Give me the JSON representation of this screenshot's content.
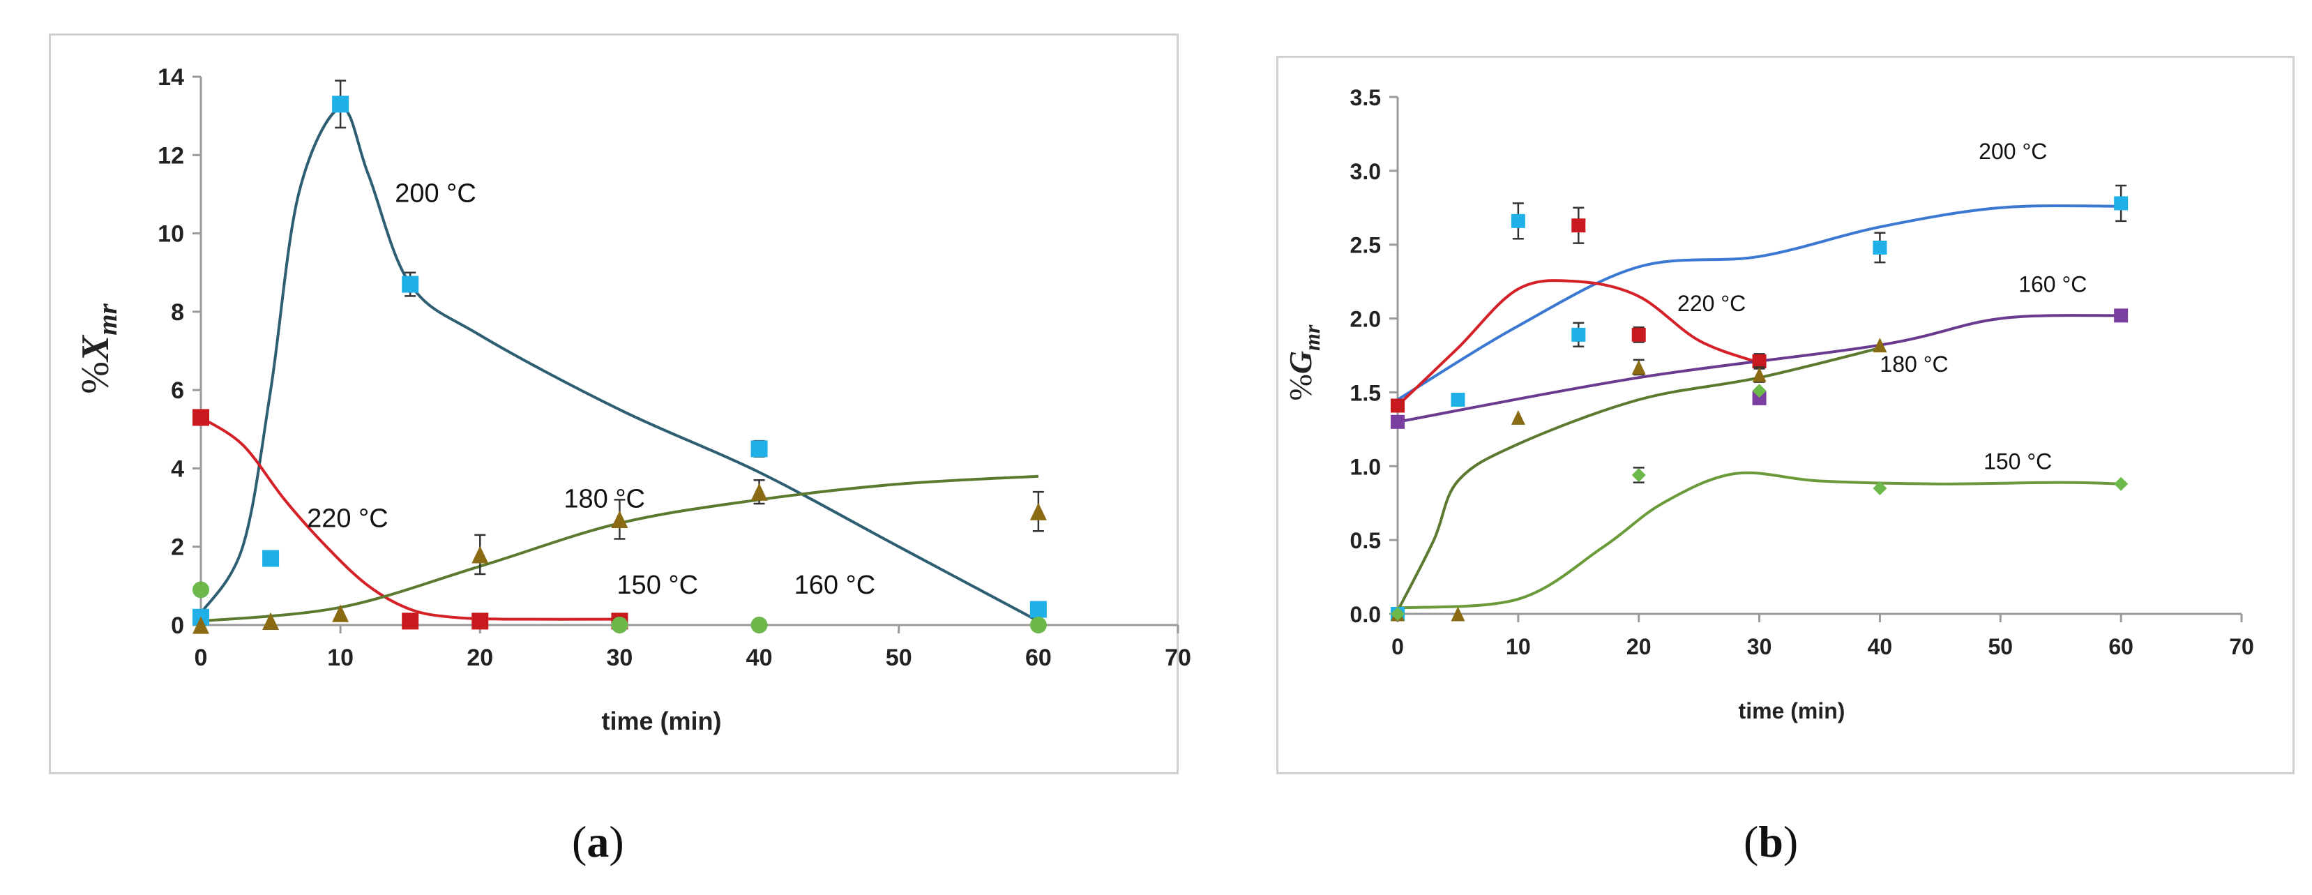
{
  "panels": [
    {
      "id": "a",
      "caption": "a",
      "chart_data": {
        "type": "scatter",
        "xlabel": "time (min)",
        "ylabel_prefix": "%",
        "ylabel_var": "X",
        "ylabel_sub": "mr",
        "xlim": [
          0,
          70
        ],
        "ylim": [
          0,
          14
        ],
        "xticks": [
          0,
          10,
          20,
          30,
          40,
          50,
          60,
          70
        ],
        "yticks": [
          0,
          2,
          4,
          6,
          8,
          10,
          12,
          14
        ],
        "series": [
          {
            "name": "200 °C",
            "color": "#1fb0e8",
            "marker": "square",
            "x": [
              0,
              5,
              10,
              15,
              40,
              60
            ],
            "y": [
              0.2,
              1.7,
              13.3,
              8.7,
              4.5,
              0.4
            ],
            "err": [
              0,
              0,
              0.6,
              0.3,
              0.2,
              0
            ],
            "curve_color": "#2e5e72",
            "curve": [
              [
                0,
                0.3
              ],
              [
                3,
                2
              ],
              [
                5,
                6
              ],
              [
                7,
                11
              ],
              [
                10,
                13.2
              ],
              [
                12,
                11.5
              ],
              [
                15,
                8.7
              ],
              [
                20,
                7.4
              ],
              [
                30,
                5.5
              ],
              [
                40,
                3.9
              ],
              [
                50,
                2
              ],
              [
                60,
                0.1
              ]
            ]
          },
          {
            "name": "220 °C",
            "color": "#c8191f",
            "marker": "square",
            "x": [
              0,
              15,
              20,
              30
            ],
            "y": [
              5.3,
              0.1,
              0.1,
              0.1
            ],
            "err": [
              0,
              0,
              0,
              0
            ],
            "curve_color": "#d42026",
            "curve": [
              [
                0,
                5.3
              ],
              [
                3,
                4.6
              ],
              [
                6,
                3.2
              ],
              [
                9,
                2
              ],
              [
                12,
                1
              ],
              [
                15,
                0.4
              ],
              [
                18,
                0.2
              ],
              [
                22,
                0.15
              ],
              [
                30,
                0.15
              ]
            ]
          },
          {
            "name": "180 °C",
            "color": "#8a6a12",
            "marker": "triangle",
            "x": [
              0,
              5,
              10,
              20,
              30,
              40,
              60
            ],
            "y": [
              0,
              0.1,
              0.3,
              1.8,
              2.7,
              3.4,
              2.9
            ],
            "err": [
              0,
              0,
              0,
              0.5,
              0.5,
              0.3,
              0.5
            ],
            "curve_color": "#5b7a30",
            "curve": [
              [
                0,
                0.1
              ],
              [
                10,
                0.45
              ],
              [
                20,
                1.5
              ],
              [
                30,
                2.6
              ],
              [
                40,
                3.2
              ],
              [
                50,
                3.6
              ],
              [
                60,
                3.8
              ]
            ]
          },
          {
            "name": "150 °C",
            "color": "#6cb84a",
            "marker": "circle",
            "x": [
              0,
              30,
              40,
              60
            ],
            "y": [
              0.9,
              0,
              0,
              0
            ],
            "err": [
              0,
              0,
              0,
              0
            ],
            "curve_color": null,
            "curve": []
          },
          {
            "name": "160 °C",
            "color": "#6cb84a",
            "marker": "circle",
            "x": [],
            "y": [],
            "err": [],
            "curve_color": null,
            "curve": []
          }
        ],
        "annotations": [
          {
            "text": "200 °C",
            "x": 13.9,
            "y": 10.8
          },
          {
            "text": "220 °C",
            "x": 7.6,
            "y": 2.5
          },
          {
            "text": "180 °C",
            "x": 26,
            "y": 3.0
          },
          {
            "text": "150 °C",
            "x": 29.8,
            "y": 0.8
          },
          {
            "text": "160 °C",
            "x": 42.5,
            "y": 0.8
          }
        ]
      }
    },
    {
      "id": "b",
      "caption": "b",
      "chart_data": {
        "type": "scatter",
        "xlabel": "time (min)",
        "ylabel_prefix": "%",
        "ylabel_var": "G",
        "ylabel_sub": "mr",
        "xlim": [
          0,
          70
        ],
        "ylim": [
          0,
          3.5
        ],
        "xticks": [
          0,
          10,
          20,
          30,
          40,
          50,
          60,
          70
        ],
        "yticks": [
          "0.0",
          "0.5",
          "1.0",
          "1.5",
          "2.0",
          "2.5",
          "3.0",
          "3.5"
        ],
        "series": [
          {
            "name": "200 °C",
            "color": "#1fb0e8",
            "marker": "square",
            "x": [
              0,
              5,
              10,
              15,
              40,
              60
            ],
            "y": [
              0,
              1.45,
              2.66,
              1.89,
              2.48,
              2.78
            ],
            "err": [
              0,
              0,
              0.12,
              0.08,
              0.1,
              0.12
            ],
            "curve_color": "#3a78d2",
            "curve": [
              [
                0,
                1.45
              ],
              [
                10,
                1.95
              ],
              [
                20,
                2.35
              ],
              [
                30,
                2.42
              ],
              [
                40,
                2.62
              ],
              [
                50,
                2.75
              ],
              [
                60,
                2.76
              ]
            ]
          },
          {
            "name": "220 °C",
            "color": "#c8191f",
            "marker": "square",
            "x": [
              0,
              15,
              20,
              30
            ],
            "y": [
              1.41,
              2.63,
              1.89,
              1.71
            ],
            "err": [
              0,
              0.12,
              0.05,
              0.05
            ],
            "curve_color": "#d42026",
            "curve": [
              [
                0,
                1.41
              ],
              [
                5,
                1.8
              ],
              [
                10,
                2.2
              ],
              [
                15,
                2.25
              ],
              [
                20,
                2.15
              ],
              [
                25,
                1.85
              ],
              [
                30,
                1.7
              ]
            ]
          },
          {
            "name": "160 °C",
            "color": "#7a3fa1",
            "marker": "square",
            "x": [
              0,
              30,
              60
            ],
            "y": [
              1.3,
              1.46,
              2.02
            ],
            "err": [
              0,
              0,
              0
            ],
            "curve_color": "#6a3a8e",
            "curve": [
              [
                0,
                1.3
              ],
              [
                20,
                1.6
              ],
              [
                40,
                1.82
              ],
              [
                50,
                2.0
              ],
              [
                60,
                2.02
              ]
            ]
          },
          {
            "name": "180 °C",
            "color": "#8a6a12",
            "marker": "triangle",
            "x": [
              0,
              5,
              10,
              20,
              30,
              40
            ],
            "y": [
              0,
              0,
              1.33,
              1.67,
              1.62,
              1.82
            ],
            "err": [
              0,
              0,
              0,
              0.05,
              0.05,
              0
            ],
            "curve_color": "#5b7a30",
            "curve": [
              [
                0,
                0.02
              ],
              [
                3,
                0.5
              ],
              [
                5,
                0.9
              ],
              [
                10,
                1.15
              ],
              [
                20,
                1.45
              ],
              [
                30,
                1.6
              ],
              [
                40,
                1.8
              ]
            ]
          },
          {
            "name": "150 °C",
            "color": "#6cb84a",
            "marker": "diamond",
            "x": [
              0,
              20,
              30,
              40,
              60
            ],
            "y": [
              0,
              0.94,
              1.51,
              0.85,
              0.88
            ],
            "err": [
              0,
              0.05,
              0,
              0,
              0
            ],
            "curve_color": "#6b9a3a",
            "curve": [
              [
                0,
                0.04
              ],
              [
                10,
                0.1
              ],
              [
                17,
                0.45
              ],
              [
                22,
                0.75
              ],
              [
                28,
                0.95
              ],
              [
                35,
                0.9
              ],
              [
                45,
                0.88
              ],
              [
                55,
                0.89
              ],
              [
                60,
                0.88
              ]
            ]
          }
        ],
        "annotations": [
          {
            "text": "200 °C",
            "x": 48.2,
            "y": 3.08
          },
          {
            "text": "220 °C",
            "x": 23.2,
            "y": 2.05
          },
          {
            "text": "160 °C",
            "x": 51.5,
            "y": 2.18
          },
          {
            "text": "180 °C",
            "x": 40,
            "y": 1.64
          },
          {
            "text": "150 °C",
            "x": 48.6,
            "y": 0.98
          }
        ]
      }
    }
  ]
}
